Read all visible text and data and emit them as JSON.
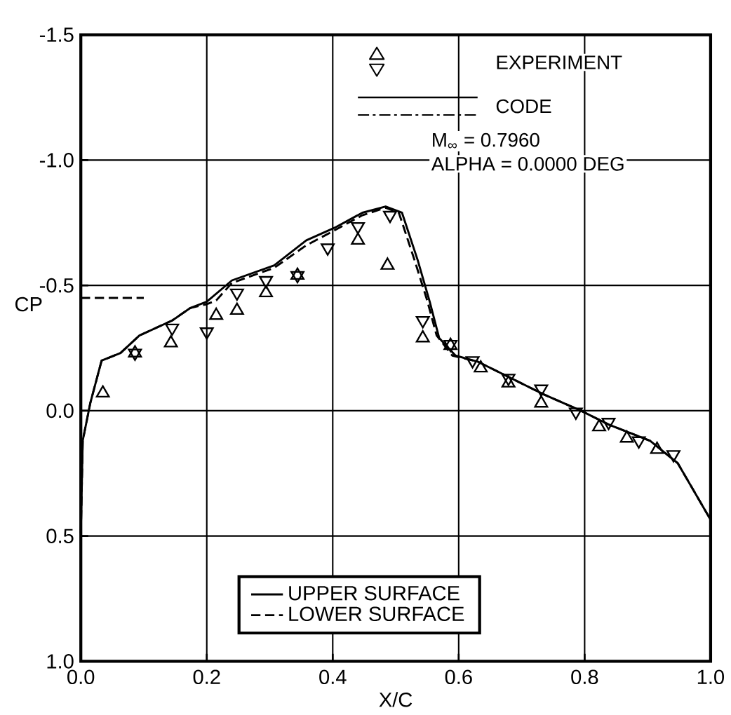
{
  "chart_data": {
    "type": "line",
    "xlabel": "X/C",
    "ylabel": "CP",
    "xlim": [
      0.0,
      1.0
    ],
    "ylim": [
      1.0,
      -1.5
    ],
    "xticks": [
      {
        "value": 0.0,
        "label": "0.0"
      },
      {
        "value": 0.2,
        "label": "0.2"
      },
      {
        "value": 0.4,
        "label": "0.4"
      },
      {
        "value": 0.6,
        "label": "0.6"
      },
      {
        "value": 0.8,
        "label": "0.8"
      },
      {
        "value": 1.0,
        "label": "1.0"
      }
    ],
    "yticks": [
      {
        "value": -1.5,
        "label": "-1.5"
      },
      {
        "value": -1.0,
        "label": "-1.0"
      },
      {
        "value": -0.5,
        "label": "-0.5"
      },
      {
        "value": 0.0,
        "label": "0.0"
      },
      {
        "value": 0.5,
        "label": "0.5"
      },
      {
        "value": 1.0,
        "label": "1.0"
      }
    ],
    "grid": true,
    "legend": "bottom",
    "annotations": [
      "EXPERIMENT",
      "CODE",
      "M$_{∞}$ = 0.7960",
      "ALPHA  =  0.0000 DEG"
    ],
    "series": [
      {
        "name": "UPPER SURFACE",
        "type": "line",
        "color": "#000000",
        "line_style": "solid",
        "marker": "none",
        "x": [
          0.0,
          0.003,
          0.015,
          0.033,
          0.063,
          0.093,
          0.145,
          0.174,
          0.2,
          0.24,
          0.307,
          0.358,
          0.403,
          0.447,
          0.484,
          0.51,
          0.535,
          0.554,
          0.569,
          0.595,
          0.631,
          0.683,
          0.735,
          0.794,
          0.838,
          0.904,
          0.948,
          1.0
        ],
        "values": [
          0.49,
          0.12,
          -0.03,
          -0.2,
          -0.23,
          -0.3,
          -0.36,
          -0.41,
          -0.435,
          -0.52,
          -0.58,
          -0.68,
          -0.73,
          -0.79,
          -0.815,
          -0.79,
          -0.6,
          -0.435,
          -0.29,
          -0.22,
          -0.195,
          -0.13,
          -0.065,
          0.0,
          0.055,
          0.12,
          0.21,
          0.435
        ]
      },
      {
        "name": "LOWER SURFACE",
        "type": "line",
        "color": "#000000",
        "line_style": "dashed",
        "marker": "none",
        "x": [
          0.0,
          0.003,
          0.015,
          0.033,
          0.063,
          0.093,
          0.145,
          0.174,
          0.2,
          0.215,
          0.24,
          0.307,
          0.358,
          0.403,
          0.447,
          0.484,
          0.505,
          0.53,
          0.55,
          0.565,
          0.59,
          0.631,
          0.683,
          0.735,
          0.794,
          0.838,
          0.904,
          0.948,
          1.0
        ],
        "values": [
          0.49,
          0.12,
          -0.03,
          -0.2,
          -0.23,
          -0.3,
          -0.36,
          -0.41,
          -0.425,
          -0.44,
          -0.51,
          -0.57,
          -0.66,
          -0.72,
          -0.78,
          -0.81,
          -0.79,
          -0.6,
          -0.44,
          -0.3,
          -0.22,
          -0.195,
          -0.13,
          -0.065,
          0.0,
          0.055,
          0.12,
          0.21,
          0.435
        ]
      },
      {
        "type": "line",
        "color": "#000000",
        "line_style": "dashed",
        "marker": "none",
        "x": [
          0.0,
          0.1
        ],
        "values": [
          -0.45,
          -0.45
        ]
      },
      {
        "type": "scatter",
        "color": "#000000",
        "marker": "triangle",
        "x": [
          0.035,
          0.086,
          0.143,
          0.215,
          0.248,
          0.294,
          0.344,
          0.44,
          0.487,
          0.543,
          0.587,
          0.635,
          0.679,
          0.731,
          0.823,
          0.867,
          0.915
        ],
        "values": [
          -0.07,
          -0.23,
          -0.27,
          -0.38,
          -0.4,
          -0.47,
          -0.54,
          -0.68,
          -0.58,
          -0.29,
          -0.26,
          -0.17,
          -0.11,
          -0.03,
          0.065,
          0.11,
          0.155
        ]
      },
      {
        "type": "scatter",
        "color": "#000000",
        "marker": "triangle-down",
        "x": [
          0.086,
          0.145,
          0.2,
          0.248,
          0.294,
          0.344,
          0.392,
          0.44,
          0.491,
          0.543,
          0.587,
          0.622,
          0.679,
          0.731,
          0.786,
          0.838,
          0.886,
          0.941
        ],
        "values": [
          -0.23,
          -0.33,
          -0.315,
          -0.47,
          -0.52,
          -0.54,
          -0.65,
          -0.735,
          -0.78,
          -0.36,
          -0.265,
          -0.2,
          -0.13,
          -0.087,
          0.005,
          0.046,
          0.12,
          0.175
        ]
      }
    ]
  }
}
